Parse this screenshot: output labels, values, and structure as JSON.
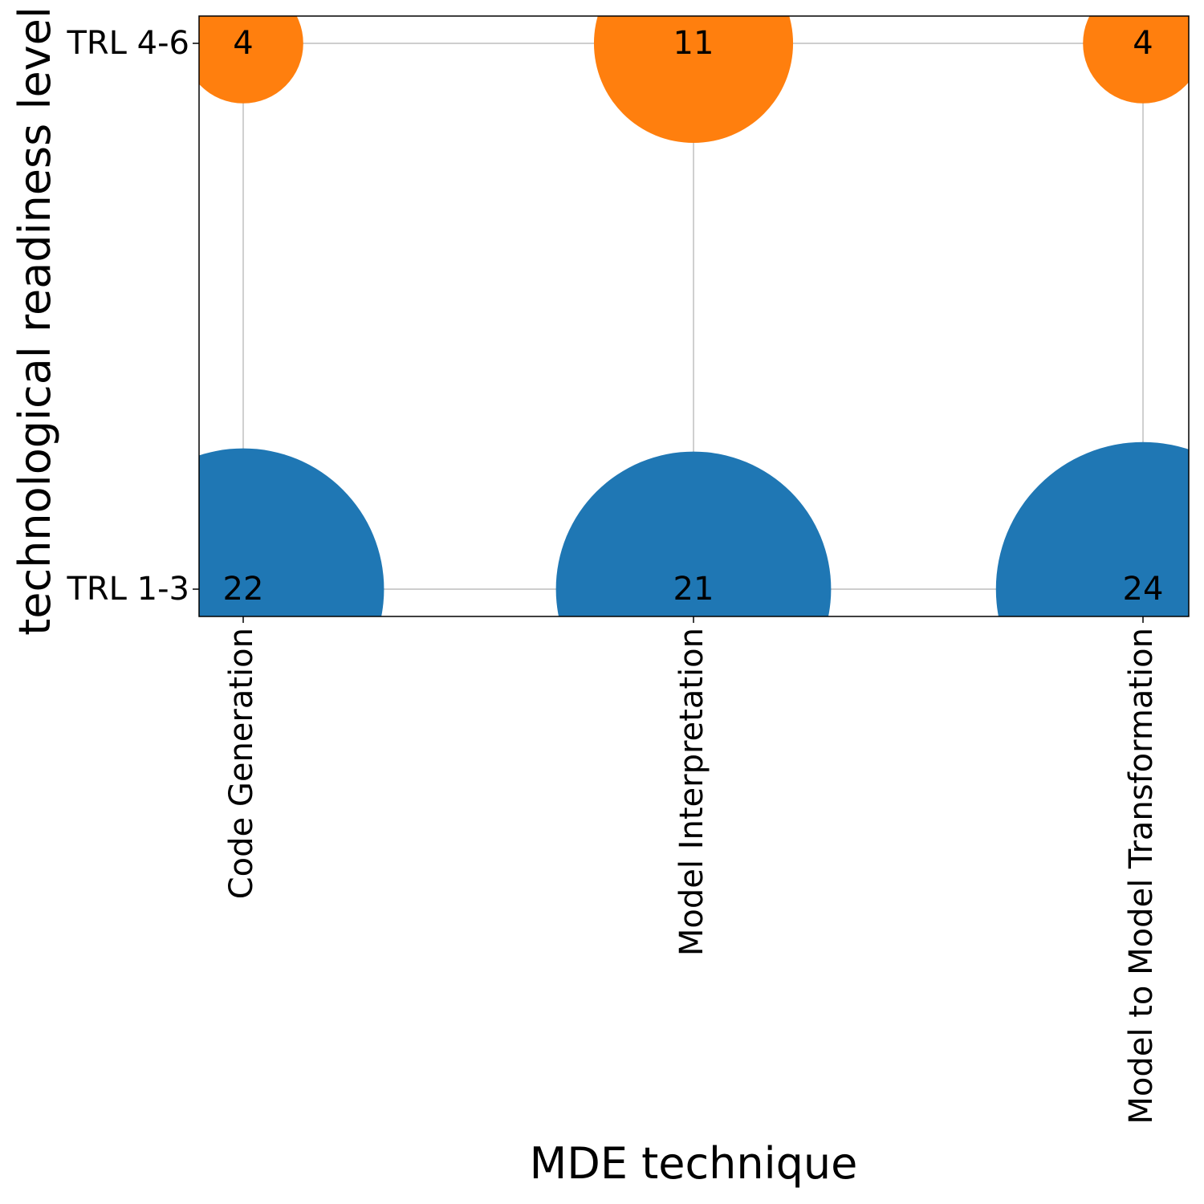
{
  "chart_data": {
    "type": "scatter",
    "title": "",
    "xlabel": "MDE technique",
    "ylabel": "technological readiness level",
    "x_categories": [
      "Code Generation",
      "Model Interpretation",
      "Model to Model Transformation"
    ],
    "y_categories": [
      "TRL 1-3",
      "TRL 4-6"
    ],
    "grid": true,
    "series": [
      {
        "color": "#1f77b4",
        "y": "TRL 1-3",
        "x": [
          "Code Generation",
          "Model Interpretation",
          "Model to Model Transformation"
        ],
        "values": [
          22,
          21,
          24
        ]
      },
      {
        "color": "#ff7f0e",
        "y": "TRL 4-6",
        "x": [
          "Code Generation",
          "Model Interpretation",
          "Model to Model Transformation"
        ],
        "values": [
          4,
          11,
          4
        ]
      }
    ]
  }
}
